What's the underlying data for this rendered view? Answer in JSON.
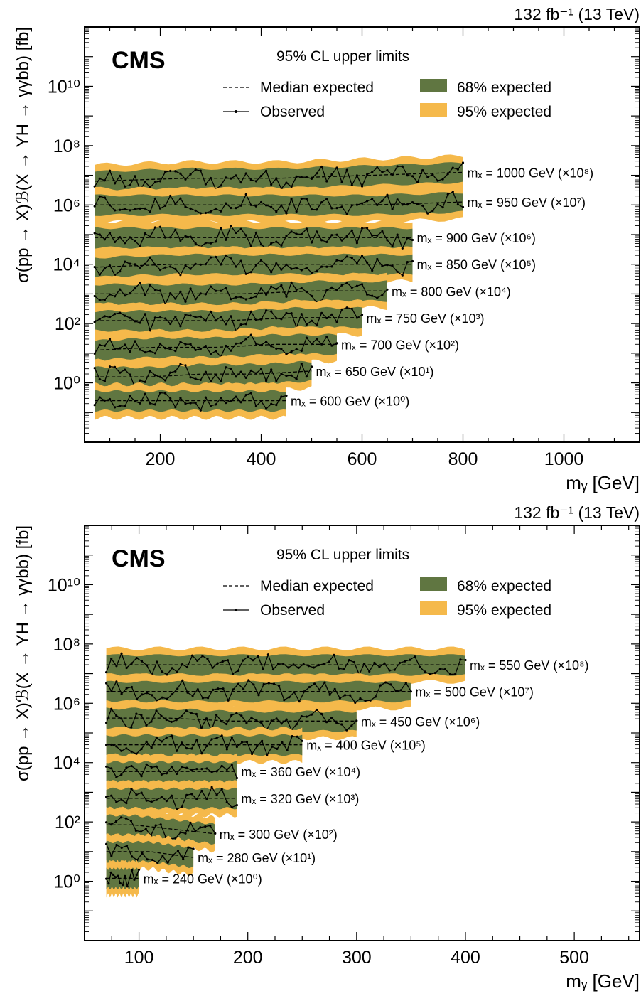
{
  "chart_data": [
    {
      "type": "line",
      "lumi_label": "132 fb⁻¹ (13 TeV)",
      "experiment": "CMS",
      "subtitle": "95% CL upper limits",
      "xlabel": "mᵧ [GeV]",
      "ylabel": "σ(pp → X)ℬ(X → YH → γγbb) [fb]",
      "xlim": [
        50,
        1150
      ],
      "ylim_log10": [
        -2,
        12
      ],
      "y_scale": "log",
      "xticks": [
        200,
        400,
        600,
        800,
        1000
      ],
      "yticks": [
        {
          "exp": 0,
          "label": "10⁰"
        },
        {
          "exp": 2,
          "label": "10²"
        },
        {
          "exp": 4,
          "label": "10⁴"
        },
        {
          "exp": 6,
          "label": "10⁶"
        },
        {
          "exp": 8,
          "label": "10⁸"
        },
        {
          "exp": 10,
          "label": "10¹⁰"
        }
      ],
      "legend": {
        "placement": "top",
        "median": "Median expected",
        "observed": "Observed",
        "band68": "68% expected",
        "band95": "95% expected"
      },
      "colors": {
        "band68": "#607641",
        "band95": "#F5B94B"
      },
      "series": [
        {
          "label": "mₓ = 1000 GeV (×10⁸)",
          "mx": 1000,
          "scale_exp": 8,
          "x_range": [
            70,
            800
          ],
          "median_log10": [
            6.8,
            6.9,
            6.9,
            7.0,
            7.1
          ]
        },
        {
          "label": "mₓ = 950 GeV (×10⁷)",
          "mx": 950,
          "scale_exp": 7,
          "x_range": [
            70,
            800
          ],
          "median_log10": [
            6.0,
            6.0,
            6.0,
            6.0,
            6.1
          ]
        },
        {
          "label": "mₓ = 900 GeV (×10⁶)",
          "mx": 900,
          "scale_exp": 6,
          "x_range": [
            70,
            700
          ],
          "median_log10": [
            4.9,
            4.9,
            4.9,
            4.9,
            4.9
          ]
        },
        {
          "label": "mₓ = 850 GeV (×10⁵)",
          "mx": 850,
          "scale_exp": 5,
          "x_range": [
            70,
            700
          ],
          "median_log10": [
            3.9,
            4.0,
            4.0,
            4.0,
            4.0
          ]
        },
        {
          "label": "mₓ = 800 GeV (×10⁴)",
          "mx": 800,
          "scale_exp": 4,
          "x_range": [
            70,
            650
          ],
          "median_log10": [
            3.0,
            3.0,
            3.0,
            3.1,
            3.1
          ]
        },
        {
          "label": "mₓ = 750 GeV (×10³)",
          "mx": 750,
          "scale_exp": 3,
          "x_range": [
            70,
            600
          ],
          "median_log10": [
            2.1,
            2.1,
            2.1,
            2.2,
            2.2
          ]
        },
        {
          "label": "mₓ = 700 GeV (×10²)",
          "mx": 700,
          "scale_exp": 2,
          "x_range": [
            70,
            550
          ],
          "median_log10": [
            1.1,
            1.2,
            1.2,
            1.3,
            1.3
          ]
        },
        {
          "label": "mₓ = 650 GeV (×10¹)",
          "mx": 650,
          "scale_exp": 1,
          "x_range": [
            70,
            500
          ],
          "median_log10": [
            0.2,
            0.2,
            0.3,
            0.3,
            0.4
          ]
        },
        {
          "label": "mₓ = 600 GeV (×10⁰)",
          "mx": 600,
          "scale_exp": 0,
          "x_range": [
            70,
            450
          ],
          "median_log10": [
            -0.6,
            -0.6,
            -0.6,
            -0.6,
            -0.6
          ]
        }
      ]
    },
    {
      "type": "line",
      "lumi_label": "132 fb⁻¹ (13 TeV)",
      "experiment": "CMS",
      "subtitle": "95% CL upper limits",
      "xlabel": "mᵧ [GeV]",
      "ylabel": "σ(pp → X)ℬ(X → YH → γγbb) [fb]",
      "xlim": [
        50,
        560
      ],
      "ylim_log10": [
        -2,
        12
      ],
      "y_scale": "log",
      "xticks": [
        100,
        200,
        300,
        400,
        500
      ],
      "yticks": [
        {
          "exp": 0,
          "label": "10⁰"
        },
        {
          "exp": 2,
          "label": "10²"
        },
        {
          "exp": 4,
          "label": "10⁴"
        },
        {
          "exp": 6,
          "label": "10⁶"
        },
        {
          "exp": 8,
          "label": "10⁸"
        },
        {
          "exp": 10,
          "label": "10¹⁰"
        }
      ],
      "legend": {
        "placement": "top",
        "median": "Median expected",
        "observed": "Observed",
        "band68": "68% expected",
        "band95": "95% expected"
      },
      "colors": {
        "band68": "#607641",
        "band95": "#F5B94B"
      },
      "series": [
        {
          "label": "mₓ = 550 GeV (×10⁸)",
          "mx": 550,
          "scale_exp": 8,
          "x_range": [
            70,
            400
          ],
          "median_log10": [
            7.3,
            7.3,
            7.3,
            7.3,
            7.3
          ]
        },
        {
          "label": "mₓ = 500 GeV (×10⁷)",
          "mx": 500,
          "scale_exp": 7,
          "x_range": [
            70,
            350
          ],
          "median_log10": [
            6.4,
            6.4,
            6.4,
            6.4,
            6.4
          ]
        },
        {
          "label": "mₓ = 450 GeV (×10⁶)",
          "mx": 450,
          "scale_exp": 6,
          "x_range": [
            70,
            300
          ],
          "median_log10": [
            5.5,
            5.5,
            5.4,
            5.4,
            5.4
          ]
        },
        {
          "label": "mₓ = 400 GeV (×10⁵)",
          "mx": 400,
          "scale_exp": 5,
          "x_range": [
            70,
            250
          ],
          "median_log10": [
            4.6,
            4.6,
            4.6,
            4.6,
            4.6
          ]
        },
        {
          "label": "mₓ = 360 GeV (×10⁴)",
          "mx": 360,
          "scale_exp": 4,
          "x_range": [
            70,
            190
          ],
          "median_log10": [
            3.7,
            3.7,
            3.7,
            3.7,
            3.7
          ]
        },
        {
          "label": "mₓ = 320 GeV (×10³)",
          "mx": 320,
          "scale_exp": 3,
          "x_range": [
            70,
            190
          ],
          "median_log10": [
            2.8,
            2.8,
            2.8,
            2.8,
            2.8
          ]
        },
        {
          "label": "mₓ = 300 GeV (×10²)",
          "mx": 300,
          "scale_exp": 2,
          "x_range": [
            70,
            170
          ],
          "median_log10": [
            1.9,
            1.9,
            1.8,
            1.7,
            1.6
          ]
        },
        {
          "label": "mₓ = 280 GeV (×10¹)",
          "mx": 280,
          "scale_exp": 1,
          "x_range": [
            70,
            150
          ],
          "median_log10": [
            1.0,
            1.0,
            1.0,
            0.9,
            0.8
          ]
        },
        {
          "label": "mₓ = 240 GeV (×10⁰)",
          "mx": 240,
          "scale_exp": 0,
          "x_range": [
            70,
            100
          ],
          "median_log10": [
            0.1,
            0.1,
            0.1,
            0.1,
            0.1
          ]
        }
      ]
    }
  ]
}
